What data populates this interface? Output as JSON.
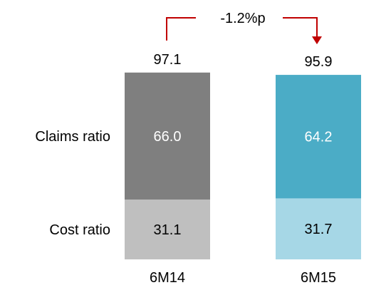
{
  "chart_data": {
    "type": "bar",
    "stacked": true,
    "categories": [
      "6M14",
      "6M15"
    ],
    "totals": [
      "97.1",
      "95.9"
    ],
    "series": [
      {
        "name": "Cost ratio",
        "values": [
          31.1,
          31.7
        ],
        "labels": [
          "31.1",
          "31.7"
        ],
        "colors": [
          "#bfbfbf",
          "#a6d7e6"
        ],
        "label_colors": [
          "#000000",
          "#000000"
        ]
      },
      {
        "name": "Claims ratio",
        "values": [
          66.0,
          64.2
        ],
        "labels": [
          "66.0",
          "64.2"
        ],
        "colors": [
          "#7f7f7f",
          "#4bacc6"
        ],
        "label_colors": [
          "#ffffff",
          "#ffffff"
        ]
      }
    ],
    "annotation": {
      "text": "-1.2%p",
      "color": "#c00000"
    },
    "ylim": [
      0,
      100
    ]
  }
}
